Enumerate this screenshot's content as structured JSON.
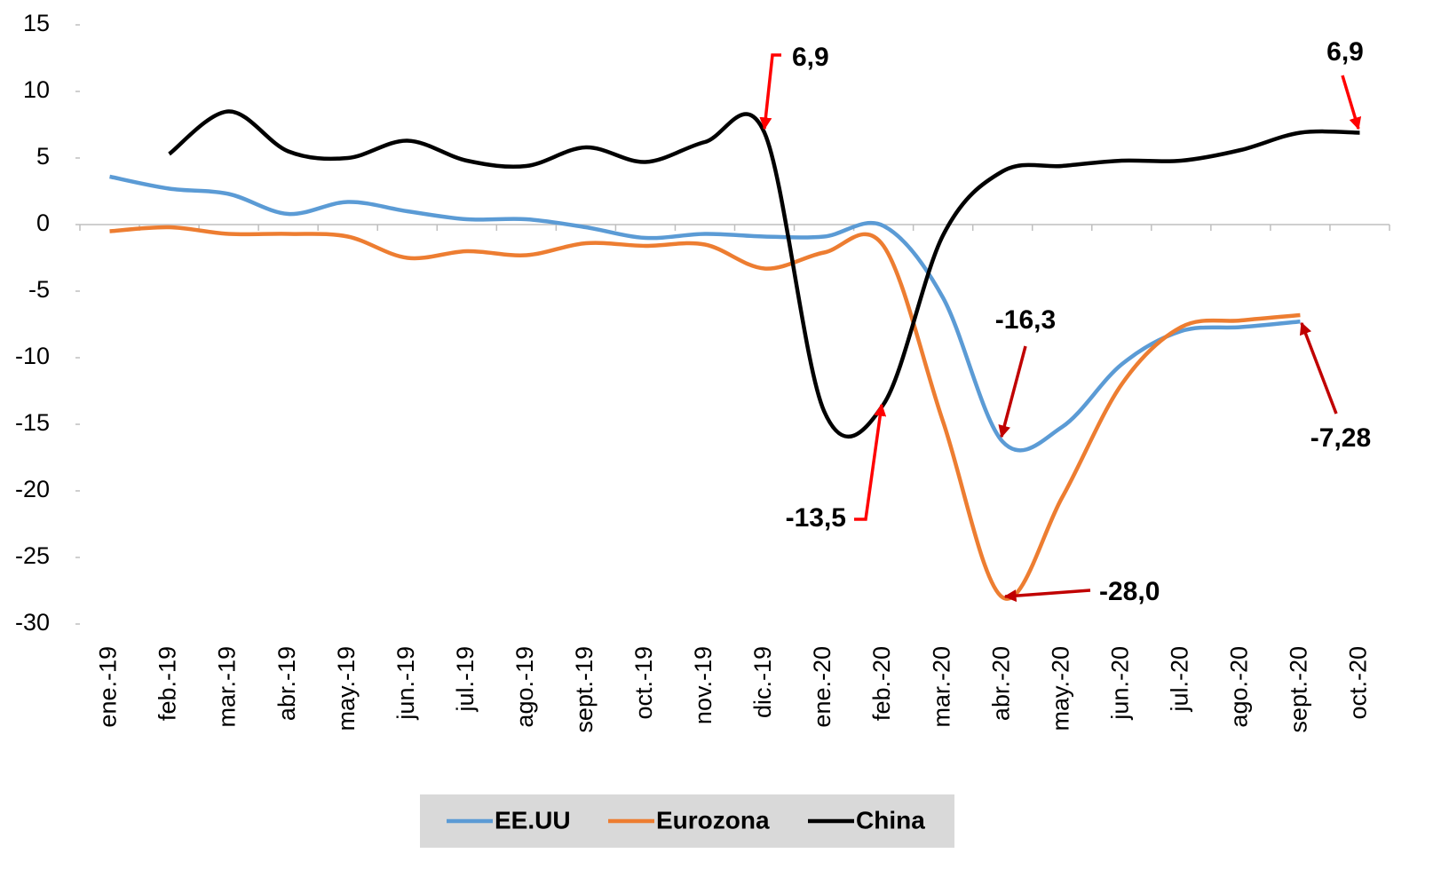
{
  "chart_data": {
    "type": "line",
    "categories": [
      "ene.-19",
      "feb.-19",
      "mar.-19",
      "abr.-19",
      "may.-19",
      "jun.-19",
      "jul.-19",
      "ago.-19",
      "sept.-19",
      "oct.-19",
      "nov.-19",
      "dic.-19",
      "ene.-20",
      "feb.-20",
      "mar.-20",
      "abr.-20",
      "may.-20",
      "jun.-20",
      "jul.-20",
      "ago.-20",
      "sept.-20",
      "oct.-20"
    ],
    "series": [
      {
        "name": "EE.UU",
        "color": "#5b9bd5",
        "values": [
          3.6,
          2.7,
          2.3,
          0.8,
          1.7,
          1.0,
          0.4,
          0.4,
          -0.2,
          -1.0,
          -0.7,
          -0.9,
          -0.9,
          -0.1,
          -5.5,
          -16.3,
          -15.2,
          -10.5,
          -8.0,
          -7.7,
          -7.28,
          null
        ]
      },
      {
        "name": "Eurozona",
        "color": "#ed7d31",
        "values": [
          -0.5,
          -0.2,
          -0.7,
          -0.7,
          -0.9,
          -2.5,
          -2.0,
          -2.3,
          -1.4,
          -1.6,
          -1.5,
          -3.3,
          -2.1,
          -1.6,
          -14.8,
          -28.0,
          -20.5,
          -12.0,
          -7.7,
          -7.2,
          -6.8,
          null
        ]
      },
      {
        "name": "China",
        "color": "#000000",
        "values": [
          null,
          5.3,
          8.5,
          5.5,
          5.0,
          6.3,
          4.8,
          4.4,
          5.8,
          4.7,
          6.2,
          6.9,
          -14.0,
          -13.5,
          -0.8,
          4.0,
          4.4,
          4.8,
          4.8,
          5.6,
          6.9,
          6.9
        ]
      }
    ],
    "ylim": [
      -30,
      15
    ],
    "yticks": [
      -30,
      -25,
      -20,
      -15,
      -10,
      -5,
      0,
      5,
      10,
      15
    ],
    "grid": false,
    "legend": "bottom",
    "annotations": [
      {
        "text": "6,9"
      },
      {
        "text": "-13,5"
      },
      {
        "text": "-16,3"
      },
      {
        "text": "-28,0"
      },
      {
        "text": "-7,28"
      },
      {
        "text": "6,9"
      }
    ]
  }
}
